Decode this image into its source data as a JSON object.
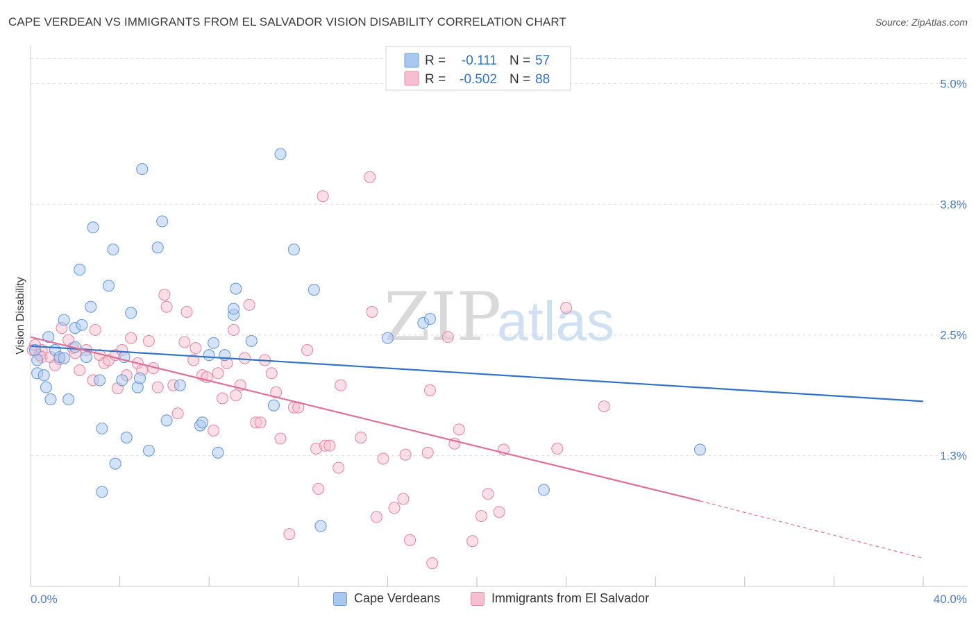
{
  "title": "CAPE VERDEAN VS IMMIGRANTS FROM EL SALVADOR VISION DISABILITY CORRELATION CHART",
  "source": "Source: ZipAtlas.com",
  "watermark": {
    "part1": "ZIP",
    "part2": "atlas"
  },
  "legend_box": {
    "rows": [
      {
        "r_label": "R =",
        "r_value": "-0.111",
        "n_label": "N =",
        "n_value": "57"
      },
      {
        "r_label": "R =",
        "r_value": "-0.502",
        "n_label": "N =",
        "n_value": "88"
      }
    ]
  },
  "bottom_legend": {
    "series1": "Cape Verdeans",
    "series2": "Immigrants from El Salvador"
  },
  "colors": {
    "series1_fill": "#a9c8f0",
    "series1_stroke": "#6b9bd8",
    "series1_line": "#2f72c9",
    "series2_fill": "#f6bfd0",
    "series2_stroke": "#e88aa8",
    "series2_line": "#e0709a",
    "grid": "#dddddd",
    "tick_label": "#4a7cc7"
  },
  "chart_data": {
    "type": "scatter",
    "title": "CAPE VERDEAN VS IMMIGRANTS FROM EL SALVADOR VISION DISABILITY CORRELATION CHART",
    "xlabel": "",
    "ylabel": "Vision Disability",
    "xlim": [
      0,
      40
    ],
    "ylim": [
      0,
      5.3
    ],
    "x_tick_labels": {
      "left": "0.0%",
      "right": "40.0%"
    },
    "y_ticks": [
      {
        "value": 1.3,
        "label": "1.3%"
      },
      {
        "value": 2.5,
        "label": "2.5%"
      },
      {
        "value": 3.8,
        "label": "3.8%"
      },
      {
        "value": 5.0,
        "label": "5.0%"
      }
    ],
    "grid": true,
    "legend_position": "top-center",
    "series": [
      {
        "name": "Cape Verdeans",
        "r": -0.111,
        "n": 57,
        "trend": {
          "x0": 0,
          "y0": 2.39,
          "x1": 40,
          "y1": 1.84
        },
        "points": [
          [
            0.2,
            2.35
          ],
          [
            0.3,
            2.25
          ],
          [
            0.3,
            2.12
          ],
          [
            0.6,
            2.1
          ],
          [
            0.7,
            1.98
          ],
          [
            0.8,
            2.48
          ],
          [
            0.9,
            1.86
          ],
          [
            1.1,
            2.35
          ],
          [
            1.3,
            2.28
          ],
          [
            1.5,
            2.65
          ],
          [
            1.5,
            2.27
          ],
          [
            1.7,
            1.86
          ],
          [
            2.0,
            2.38
          ],
          [
            2.0,
            2.57
          ],
          [
            2.2,
            3.15
          ],
          [
            2.3,
            2.6
          ],
          [
            2.5,
            2.28
          ],
          [
            2.7,
            2.78
          ],
          [
            2.8,
            3.57
          ],
          [
            3.1,
            2.05
          ],
          [
            3.2,
            1.57
          ],
          [
            3.2,
            0.94
          ],
          [
            3.5,
            2.99
          ],
          [
            3.7,
            3.35
          ],
          [
            3.8,
            1.22
          ],
          [
            4.1,
            2.05
          ],
          [
            4.2,
            2.28
          ],
          [
            4.3,
            1.48
          ],
          [
            4.5,
            2.72
          ],
          [
            4.8,
            1.98
          ],
          [
            4.9,
            2.07
          ],
          [
            5.0,
            4.15
          ],
          [
            5.3,
            1.35
          ],
          [
            5.7,
            3.37
          ],
          [
            5.9,
            3.63
          ],
          [
            6.1,
            1.65
          ],
          [
            6.7,
            2.0
          ],
          [
            7.6,
            1.6
          ],
          [
            7.7,
            1.63
          ],
          [
            8.0,
            2.3
          ],
          [
            8.2,
            2.42
          ],
          [
            8.4,
            1.33
          ],
          [
            8.7,
            2.3
          ],
          [
            9.1,
            2.7
          ],
          [
            9.1,
            2.76
          ],
          [
            9.2,
            2.96
          ],
          [
            9.9,
            2.44
          ],
          [
            10.9,
            1.8
          ],
          [
            11.2,
            4.3
          ],
          [
            11.8,
            3.35
          ],
          [
            12.7,
            2.95
          ],
          [
            13.0,
            0.6
          ],
          [
            16.0,
            2.47
          ],
          [
            17.6,
            2.62
          ],
          [
            17.9,
            2.66
          ],
          [
            23.0,
            0.96
          ],
          [
            30.0,
            1.36
          ]
        ]
      },
      {
        "name": "Immigrants from El Salvador",
        "r": -0.502,
        "n": 88,
        "trend": {
          "x0": 0,
          "y0": 2.48,
          "x1": 30,
          "y1": 0.85,
          "dash_x1": 40,
          "dash_y1": 0.28
        },
        "points": [
          [
            0.1,
            2.35
          ],
          [
            0.2,
            2.4
          ],
          [
            0.4,
            2.3
          ],
          [
            0.5,
            2.35
          ],
          [
            0.5,
            2.28
          ],
          [
            0.9,
            2.28
          ],
          [
            1.1,
            2.2
          ],
          [
            1.3,
            2.26
          ],
          [
            1.4,
            2.57
          ],
          [
            1.7,
            2.45
          ],
          [
            1.9,
            2.37
          ],
          [
            2.0,
            2.32
          ],
          [
            2.2,
            2.15
          ],
          [
            2.5,
            2.35
          ],
          [
            2.8,
            2.05
          ],
          [
            2.9,
            2.55
          ],
          [
            3.1,
            2.3
          ],
          [
            3.3,
            2.22
          ],
          [
            3.5,
            2.25
          ],
          [
            3.8,
            2.3
          ],
          [
            3.9,
            1.97
          ],
          [
            4.1,
            2.35
          ],
          [
            4.3,
            2.1
          ],
          [
            4.5,
            2.47
          ],
          [
            4.8,
            2.22
          ],
          [
            5.0,
            2.15
          ],
          [
            5.3,
            2.44
          ],
          [
            5.5,
            2.17
          ],
          [
            5.7,
            1.98
          ],
          [
            6.0,
            2.9
          ],
          [
            6.1,
            2.78
          ],
          [
            6.4,
            2.0
          ],
          [
            6.6,
            1.72
          ],
          [
            6.9,
            2.43
          ],
          [
            7.0,
            2.73
          ],
          [
            7.3,
            2.25
          ],
          [
            7.4,
            2.37
          ],
          [
            7.7,
            2.1
          ],
          [
            7.9,
            2.08
          ],
          [
            8.2,
            1.55
          ],
          [
            8.4,
            2.12
          ],
          [
            8.6,
            1.87
          ],
          [
            8.8,
            2.22
          ],
          [
            9.1,
            2.55
          ],
          [
            9.2,
            1.9
          ],
          [
            9.4,
            2.0
          ],
          [
            9.6,
            2.27
          ],
          [
            9.8,
            2.8
          ],
          [
            10.1,
            1.63
          ],
          [
            10.3,
            1.63
          ],
          [
            10.5,
            2.25
          ],
          [
            10.8,
            2.12
          ],
          [
            11.0,
            1.93
          ],
          [
            11.2,
            1.47
          ],
          [
            11.6,
            0.52
          ],
          [
            11.8,
            1.78
          ],
          [
            12.0,
            1.78
          ],
          [
            12.4,
            2.35
          ],
          [
            12.8,
            1.37
          ],
          [
            12.9,
            0.97
          ],
          [
            13.1,
            3.88
          ],
          [
            13.2,
            1.4
          ],
          [
            13.4,
            1.4
          ],
          [
            13.8,
            1.18
          ],
          [
            13.9,
            2.0
          ],
          [
            14.8,
            1.48
          ],
          [
            15.2,
            4.07
          ],
          [
            15.3,
            2.73
          ],
          [
            15.5,
            0.69
          ],
          [
            15.8,
            1.27
          ],
          [
            16.3,
            0.78
          ],
          [
            16.7,
            0.87
          ],
          [
            16.8,
            1.31
          ],
          [
            17.0,
            0.46
          ],
          [
            17.8,
            1.33
          ],
          [
            17.9,
            1.95
          ],
          [
            18.0,
            0.23
          ],
          [
            18.7,
            2.48
          ],
          [
            19.0,
            1.42
          ],
          [
            19.2,
            1.56
          ],
          [
            19.8,
            0.45
          ],
          [
            20.2,
            0.7
          ],
          [
            20.5,
            0.92
          ],
          [
            21.0,
            0.74
          ],
          [
            21.2,
            1.36
          ],
          [
            23.6,
            1.37
          ],
          [
            24.0,
            2.77
          ],
          [
            25.7,
            1.79
          ]
        ]
      }
    ]
  }
}
